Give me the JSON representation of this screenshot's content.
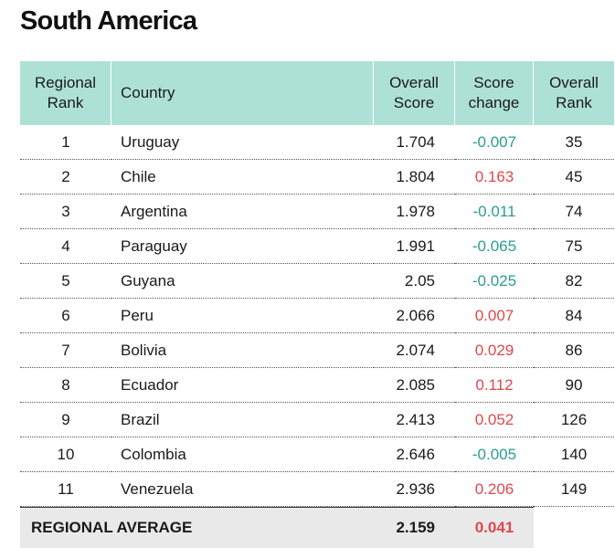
{
  "title": "South America",
  "headers": {
    "rank_line1": "Regional",
    "rank_line2": "Rank",
    "country": "Country",
    "score_line1": "Overall",
    "score_line2": "Score",
    "change_line1": "Score",
    "change_line2": "change",
    "orank_line1": "Overall",
    "orank_line2": "Rank"
  },
  "rows": [
    {
      "rank": "1",
      "country": "Uruguay",
      "score": "1.704",
      "change": "-0.007",
      "overall_rank": "35"
    },
    {
      "rank": "2",
      "country": "Chile",
      "score": "1.804",
      "change": "0.163",
      "overall_rank": "45"
    },
    {
      "rank": "3",
      "country": "Argentina",
      "score": "1.978",
      "change": "-0.011",
      "overall_rank": "74"
    },
    {
      "rank": "4",
      "country": "Paraguay",
      "score": "1.991",
      "change": "-0.065",
      "overall_rank": "75"
    },
    {
      "rank": "5",
      "country": "Guyana",
      "score": "2.05",
      "change": "-0.025",
      "overall_rank": "82"
    },
    {
      "rank": "6",
      "country": "Peru",
      "score": "2.066",
      "change": "0.007",
      "overall_rank": "84"
    },
    {
      "rank": "7",
      "country": "Bolivia",
      "score": "2.074",
      "change": "0.029",
      "overall_rank": "86"
    },
    {
      "rank": "8",
      "country": "Ecuador",
      "score": "2.085",
      "change": "0.112",
      "overall_rank": "90"
    },
    {
      "rank": "9",
      "country": "Brazil",
      "score": "2.413",
      "change": "0.052",
      "overall_rank": "126"
    },
    {
      "rank": "10",
      "country": "Colombia",
      "score": "2.646",
      "change": "-0.005",
      "overall_rank": "140"
    },
    {
      "rank": "11",
      "country": "Venezuela",
      "score": "2.936",
      "change": "0.206",
      "overall_rank": "149"
    }
  ],
  "average": {
    "label": "REGIONAL AVERAGE",
    "score": "2.159",
    "change": "0.041"
  },
  "colors": {
    "header_bg": "#aee1d5",
    "negative_change": "#2a9d8f",
    "positive_change": "#e0474c",
    "average_bg": "#e9e9e9"
  }
}
